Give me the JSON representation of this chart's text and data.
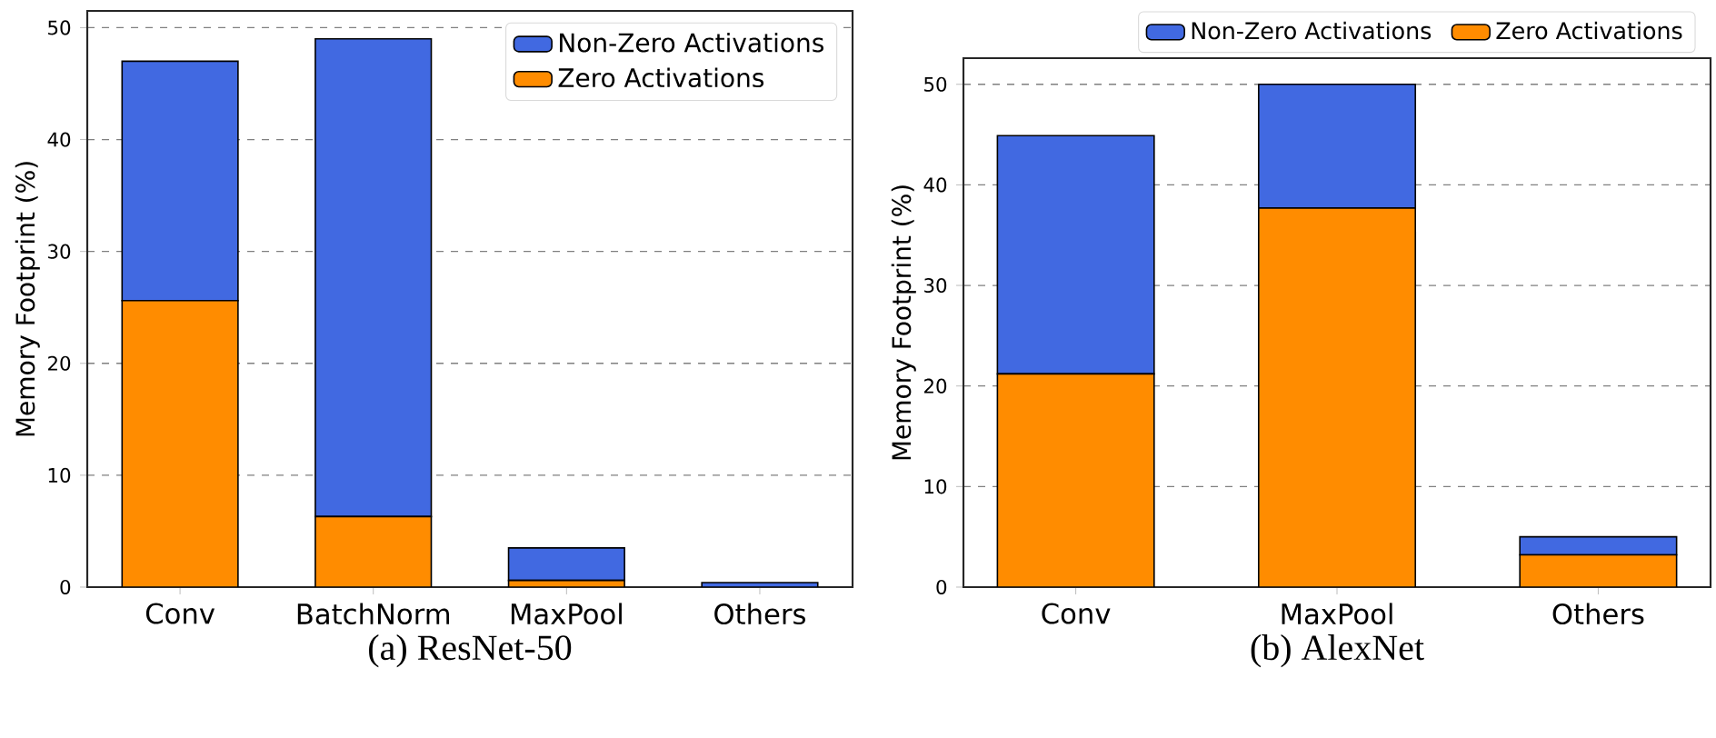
{
  "chart_data": [
    {
      "type": "bar",
      "title": "(a) ResNet-50",
      "ylabel": "Memory Footprint (%)",
      "categories": [
        "Conv",
        "BatchNorm",
        "MaxPool",
        "Others"
      ],
      "stacked": true,
      "ylim": [
        0,
        51.5
      ],
      "yticks": [
        0,
        10,
        20,
        30,
        40,
        50
      ],
      "grid": "y",
      "legend": "top right",
      "series": [
        {
          "name": "Zero Activations",
          "color": "#ff8c00",
          "values": [
            25.6,
            6.3,
            0.6,
            null
          ]
        },
        {
          "name": "Non-Zero Activations",
          "color": "#4169e1",
          "values": [
            21.4,
            42.7,
            2.9,
            0.4
          ]
        }
      ]
    },
    {
      "type": "bar",
      "title": "(b) AlexNet",
      "ylabel": "Memory Footprint (%)",
      "categories": [
        "Conv",
        "MaxPool",
        "Others"
      ],
      "stacked": true,
      "ylim": [
        0,
        52.6
      ],
      "yticks": [
        0,
        10,
        20,
        30,
        40,
        50
      ],
      "grid": "y",
      "legend": "top right",
      "series": [
        {
          "name": "Zero Activations",
          "color": "#ff8c00",
          "values": [
            21.2,
            37.7,
            3.2
          ]
        },
        {
          "name": "Non-Zero Activations",
          "color": "#4169e1",
          "values": [
            23.7,
            12.3,
            1.8
          ]
        }
      ]
    }
  ]
}
